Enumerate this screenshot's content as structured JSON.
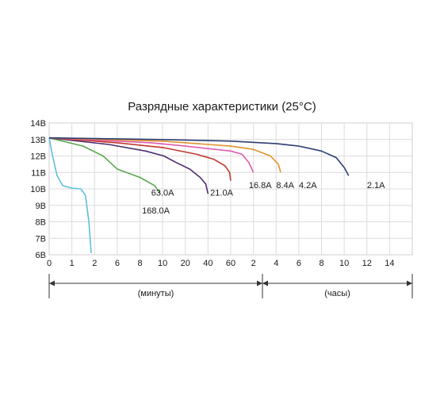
{
  "chart_data": {
    "type": "line",
    "title": "Разрядные характеристики (25°C)",
    "y_ticks": [
      "6В",
      "7В",
      "8В",
      "9В",
      "10В",
      "11В",
      "12В",
      "13В",
      "14В"
    ],
    "ylim": [
      6,
      14
    ],
    "x_ticks": [
      "0",
      "1",
      "2",
      "6",
      "8",
      "10",
      "20",
      "40",
      "60",
      "2",
      "4",
      "6",
      "8",
      "10",
      "12",
      "14"
    ],
    "ranges": [
      {
        "label": "(минуты)"
      },
      {
        "label": "(часы)"
      }
    ],
    "grid": true,
    "series": [
      {
        "name": "168.0A",
        "color": "#5bc0de",
        "points": [
          [
            0,
            13.1
          ],
          [
            0.15,
            12.0
          ],
          [
            0.35,
            10.8
          ],
          [
            0.6,
            10.2
          ],
          [
            1.0,
            10.05
          ],
          [
            1.4,
            10.0
          ],
          [
            1.6,
            9.6
          ],
          [
            1.75,
            8.0
          ],
          [
            1.85,
            6.1
          ]
        ]
      },
      {
        "name": "63.0A",
        "color": "#5aa84e",
        "points": [
          [
            0,
            13.1
          ],
          [
            1.5,
            12.6
          ],
          [
            3.5,
            12.0
          ],
          [
            6.0,
            11.2
          ],
          [
            8.0,
            10.7
          ],
          [
            9.3,
            10.2
          ],
          [
            9.8,
            9.7
          ]
        ]
      },
      {
        "name": "21.0A",
        "color": "#4d2f6e",
        "points": [
          [
            0,
            13.1
          ],
          [
            4.5,
            12.7
          ],
          [
            8.5,
            12.3
          ],
          [
            10.5,
            12.0
          ],
          [
            16.0,
            11.6
          ],
          [
            24.0,
            11.2
          ],
          [
            33.0,
            10.7
          ],
          [
            38.0,
            10.3
          ],
          [
            40.0,
            9.7
          ]
        ]
      },
      {
        "name": "16.8A",
        "color": "#c0392b",
        "points": [
          [
            0,
            13.1
          ],
          [
            6.0,
            12.8
          ],
          [
            10.5,
            12.5
          ],
          [
            30.0,
            12.1
          ],
          [
            45.0,
            11.8
          ],
          [
            55.0,
            11.4
          ],
          [
            59.0,
            11.0
          ],
          [
            61.0,
            10.5
          ]
        ]
      },
      {
        "name": "8.4A",
        "color": "#e05ab0",
        "points": [
          [
            0,
            13.1
          ],
          [
            9.0,
            12.8
          ],
          [
            20.0,
            12.6
          ],
          [
            60.0,
            12.3
          ],
          [
            1.0,
            12.1
          ],
          [
            1.6,
            11.6
          ],
          [
            2.0,
            11.0
          ]
        ]
      },
      {
        "name": "4.2A",
        "color": "#e0922a",
        "points": [
          [
            0,
            13.1
          ],
          [
            10.0,
            12.9
          ],
          [
            40.0,
            12.7
          ],
          [
            60.0,
            12.6
          ],
          [
            2.0,
            12.4
          ],
          [
            3.5,
            12.0
          ],
          [
            4.2,
            11.5
          ],
          [
            4.4,
            11.0
          ]
        ]
      },
      {
        "name": "2.1A",
        "color": "#2c3e73",
        "points": [
          [
            0,
            13.1
          ],
          [
            10.0,
            13.0
          ],
          [
            60.0,
            12.9
          ],
          [
            4.0,
            12.75
          ],
          [
            6.0,
            12.6
          ],
          [
            8.0,
            12.3
          ],
          [
            9.3,
            11.9
          ],
          [
            10.0,
            11.3
          ],
          [
            10.4,
            10.8
          ]
        ]
      }
    ],
    "series_labels": [
      {
        "text": "168.0A"
      },
      {
        "text": "63.0A"
      },
      {
        "text": "21.0A"
      },
      {
        "text": "16.8A"
      },
      {
        "text": "8.4A"
      },
      {
        "text": "4.2A"
      },
      {
        "text": "2.1A"
      }
    ]
  }
}
